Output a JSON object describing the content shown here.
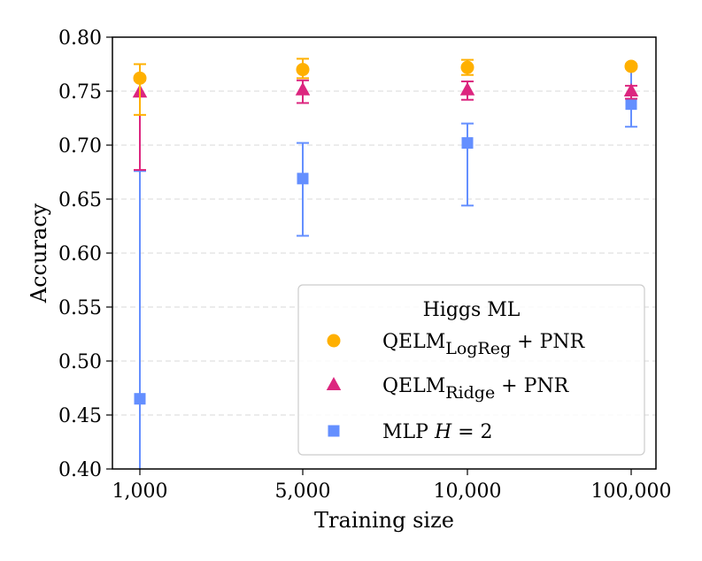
{
  "chart_data": {
    "type": "scatter",
    "xlabel": "Training size",
    "ylabel": "Accuracy",
    "categories": [
      "1,000",
      "5,000",
      "10,000",
      "100,000"
    ],
    "ylim": [
      0.4,
      0.8
    ],
    "yticks": [
      "0.40",
      "0.45",
      "0.50",
      "0.55",
      "0.60",
      "0.65",
      "0.70",
      "0.75",
      "0.80"
    ],
    "grid": "horizontal dashed",
    "legend": {
      "title": "Higgs ML",
      "placement": "lower-right",
      "entries": [
        {
          "base": "QELM",
          "sub": "LogReg",
          "suffix": " + PNR"
        },
        {
          "base": "QELM",
          "sub": "Ridge",
          "suffix": " + PNR"
        },
        {
          "base": "MLP ",
          "italic": "H",
          "suffix": " = 2"
        }
      ]
    },
    "series": [
      {
        "name": "QELM_LogReg + PNR",
        "marker": "circle",
        "color": "#FFB000",
        "values": [
          0.762,
          0.77,
          0.772,
          0.773
        ],
        "err_low": [
          0.728,
          0.762,
          0.765,
          0.771
        ],
        "err_high": [
          0.775,
          0.78,
          0.779,
          0.775
        ]
      },
      {
        "name": "QELM_Ridge + PNR",
        "marker": "triangle",
        "color": "#DC267F",
        "values": [
          0.749,
          0.751,
          0.751,
          0.75
        ],
        "err_low": [
          0.677,
          0.739,
          0.742,
          0.743
        ],
        "err_high": [
          0.76,
          0.76,
          0.759,
          0.755
        ]
      },
      {
        "name": "MLP H = 2",
        "marker": "square",
        "color": "#648FFF",
        "values": [
          0.465,
          0.669,
          0.702,
          0.738
        ],
        "err_low": [
          0.4,
          0.616,
          0.644,
          0.717
        ],
        "err_high": [
          0.676,
          0.702,
          0.72,
          0.772
        ]
      }
    ]
  }
}
